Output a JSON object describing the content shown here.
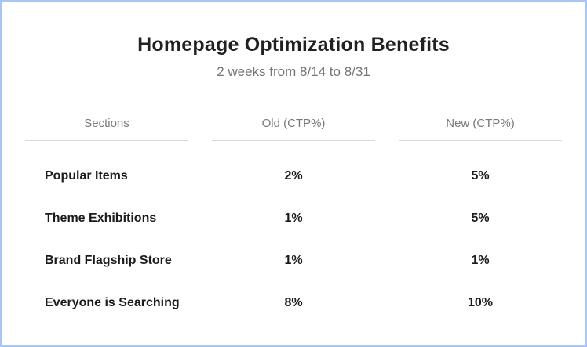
{
  "page": {
    "title": "Homepage Optimization Benefits",
    "subtitle": "2 weeks from 8/14 to 8/31"
  },
  "table": {
    "columns": {
      "sections": "Sections",
      "old": "Old (CTP%)",
      "new": "New (CTP%)"
    },
    "rows": [
      {
        "section": "Popular Items",
        "old": "2%",
        "new": "5%"
      },
      {
        "section": "Theme Exhibitions",
        "old": "1%",
        "new": "5%"
      },
      {
        "section": "Brand Flagship Store",
        "old": "1%",
        "new": "1%"
      },
      {
        "section": "Everyone is Searching",
        "old": "8%",
        "new": "10%"
      }
    ]
  },
  "colors": {
    "frame_border": "#a9c5f5",
    "title_text": "#212121",
    "subtitle_text": "#757575",
    "header_text": "#75797d",
    "header_underline": "#d8d8d8",
    "cell_text": "#1b1b1b",
    "background": "#ffffff"
  }
}
